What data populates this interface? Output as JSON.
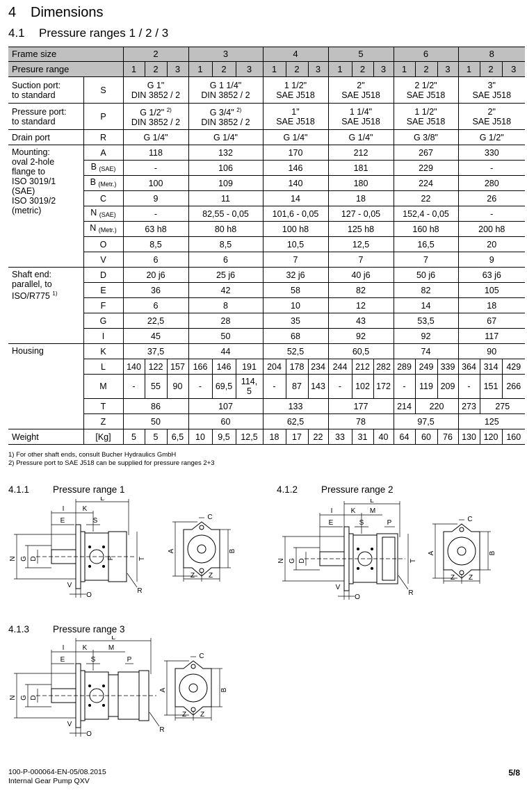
{
  "heading": {
    "number": "4",
    "title": "Dimensions"
  },
  "subheading": {
    "number": "4.1",
    "title": "Pressure ranges 1 / 2 / 3"
  },
  "table": {
    "frame_label": "Frame size",
    "frames": [
      "2",
      "3",
      "4",
      "5",
      "6",
      "8"
    ],
    "range_label": "Presure range",
    "ranges": [
      "1",
      "2",
      "3"
    ],
    "rows": [
      {
        "label": "Suction port:\nto standard",
        "symbol": "S",
        "cells": [
          {
            "v": "G 1\"\nDIN 3852 / 2",
            "span": 3
          },
          {
            "v": "G 1 1/4\"\nDIN 3852 / 2",
            "span": 3
          },
          {
            "v": "1 1/2\"\nSAE J518",
            "span": 3
          },
          {
            "v": "2\"\nSAE J518",
            "span": 3
          },
          {
            "v": "2 1/2\"\nSAE J518",
            "span": 3
          },
          {
            "v": "3\"\nSAE J518",
            "span": 3
          }
        ]
      },
      {
        "label": "Pressure port:\nto standard",
        "symbol": "P",
        "cells": [
          {
            "v": "G 1/2\"",
            "sup": "2)",
            "v2": "DIN 3852 / 2",
            "span": 3
          },
          {
            "v": "G 3/4\"",
            "sup": "2)",
            "v2": "DIN 3852 / 2",
            "span": 3
          },
          {
            "v": "1\"\nSAE J518",
            "span": 3
          },
          {
            "v": "1 1/4\"\nSAE J518",
            "span": 3
          },
          {
            "v": "1 1/2\"\nSAE J518",
            "span": 3
          },
          {
            "v": "2\"\nSAE J518",
            "span": 3
          }
        ]
      },
      {
        "label": "Drain port",
        "symbol": "R",
        "cells": [
          {
            "v": "G 1/4\"",
            "span": 3
          },
          {
            "v": "G 1/4\"",
            "span": 3
          },
          {
            "v": "G 1/4\"",
            "span": 3
          },
          {
            "v": "G 1/4\"",
            "span": 3
          },
          {
            "v": "G 3/8\"",
            "span": 3
          },
          {
            "v": "G 1/2\"",
            "span": 3
          }
        ]
      },
      {
        "label": "Mounting:\noval 2-hole\nflange to\nISO 3019/1\n(SAE)\nISO 3019/2\n(metric)",
        "label_rows": 8,
        "symbol": "A",
        "cells": [
          {
            "v": "118",
            "span": 3
          },
          {
            "v": "132",
            "span": 3
          },
          {
            "v": "170",
            "span": 3
          },
          {
            "v": "212",
            "span": 3
          },
          {
            "v": "267",
            "span": 3
          },
          {
            "v": "330",
            "span": 3
          }
        ]
      },
      {
        "symbol": "B",
        "sub": "(SAE)",
        "cells": [
          {
            "v": "-",
            "span": 3
          },
          {
            "v": "106",
            "span": 3
          },
          {
            "v": "146",
            "span": 3
          },
          {
            "v": "181",
            "span": 3
          },
          {
            "v": "229",
            "span": 3
          },
          {
            "v": "-",
            "span": 3
          }
        ]
      },
      {
        "symbol": "B",
        "sub": "(Metr.)",
        "cells": [
          {
            "v": "100",
            "span": 3
          },
          {
            "v": "109",
            "span": 3
          },
          {
            "v": "140",
            "span": 3
          },
          {
            "v": "180",
            "span": 3
          },
          {
            "v": "224",
            "span": 3
          },
          {
            "v": "280",
            "span": 3
          }
        ]
      },
      {
        "symbol": "C",
        "cells": [
          {
            "v": "9",
            "span": 3
          },
          {
            "v": "11",
            "span": 3
          },
          {
            "v": "14",
            "span": 3
          },
          {
            "v": "18",
            "span": 3
          },
          {
            "v": "22",
            "span": 3
          },
          {
            "v": "26",
            "span": 3
          }
        ]
      },
      {
        "symbol": "N",
        "sub": "(SAE)",
        "cells": [
          {
            "v": "-",
            "span": 3
          },
          {
            "v": "82,55 - 0,05",
            "span": 3
          },
          {
            "v": "101,6 - 0,05",
            "span": 3
          },
          {
            "v": "127 - 0,05",
            "span": 3
          },
          {
            "v": "152,4 - 0,05",
            "span": 3
          },
          {
            "v": "-",
            "span": 3
          }
        ]
      },
      {
        "symbol": "N",
        "sub": "(Metr.)",
        "cells": [
          {
            "v": "63 h8",
            "span": 3
          },
          {
            "v": "80 h8",
            "span": 3
          },
          {
            "v": "100 h8",
            "span": 3
          },
          {
            "v": "125 h8",
            "span": 3
          },
          {
            "v": "160 h8",
            "span": 3
          },
          {
            "v": "200 h8",
            "span": 3
          }
        ]
      },
      {
        "symbol": "O",
        "cells": [
          {
            "v": "8,5",
            "span": 3
          },
          {
            "v": "8,5",
            "span": 3
          },
          {
            "v": "10,5",
            "span": 3
          },
          {
            "v": "12,5",
            "span": 3
          },
          {
            "v": "16,5",
            "span": 3
          },
          {
            "v": "20",
            "span": 3
          }
        ]
      },
      {
        "symbol": "V",
        "cells": [
          {
            "v": "6",
            "span": 3
          },
          {
            "v": "6",
            "span": 3
          },
          {
            "v": "7",
            "span": 3
          },
          {
            "v": "7",
            "span": 3
          },
          {
            "v": "7",
            "span": 3
          },
          {
            "v": "9",
            "span": 3
          }
        ]
      },
      {
        "label": "Shaft end:\nparallel, to\nISO/R775",
        "label_sup": "1)",
        "label_rows": 5,
        "symbol": "D",
        "cells": [
          {
            "v": "20 j6",
            "span": 3
          },
          {
            "v": "25 j6",
            "span": 3
          },
          {
            "v": "32 j6",
            "span": 3
          },
          {
            "v": "40 j6",
            "span": 3
          },
          {
            "v": "50 j6",
            "span": 3
          },
          {
            "v": "63 j6",
            "span": 3
          }
        ]
      },
      {
        "symbol": "E",
        "cells": [
          {
            "v": "36",
            "span": 3
          },
          {
            "v": "42",
            "span": 3
          },
          {
            "v": "58",
            "span": 3
          },
          {
            "v": "82",
            "span": 3
          },
          {
            "v": "82",
            "span": 3
          },
          {
            "v": "105",
            "span": 3
          }
        ]
      },
      {
        "symbol": "F",
        "cells": [
          {
            "v": "6",
            "span": 3
          },
          {
            "v": "8",
            "span": 3
          },
          {
            "v": "10",
            "span": 3
          },
          {
            "v": "12",
            "span": 3
          },
          {
            "v": "14",
            "span": 3
          },
          {
            "v": "18",
            "span": 3
          }
        ]
      },
      {
        "symbol": "G",
        "cells": [
          {
            "v": "22,5",
            "span": 3
          },
          {
            "v": "28",
            "span": 3
          },
          {
            "v": "35",
            "span": 3
          },
          {
            "v": "43",
            "span": 3
          },
          {
            "v": "53,5",
            "span": 3
          },
          {
            "v": "67",
            "span": 3
          }
        ]
      },
      {
        "symbol": "I",
        "cells": [
          {
            "v": "45",
            "span": 3
          },
          {
            "v": "50",
            "span": 3
          },
          {
            "v": "68",
            "span": 3
          },
          {
            "v": "92",
            "span": 3
          },
          {
            "v": "92",
            "span": 3
          },
          {
            "v": "117",
            "span": 3
          }
        ]
      },
      {
        "label": "Housing",
        "label_rows": 5,
        "symbol": "K",
        "cells": [
          {
            "v": "37,5",
            "span": 3
          },
          {
            "v": "44",
            "span": 3
          },
          {
            "v": "52,5",
            "span": 3
          },
          {
            "v": "60,5",
            "span": 3
          },
          {
            "v": "74",
            "span": 3
          },
          {
            "v": "90",
            "span": 3
          }
        ]
      },
      {
        "symbol": "L",
        "cells": [
          {
            "v": "140"
          },
          {
            "v": "122"
          },
          {
            "v": "157"
          },
          {
            "v": "166"
          },
          {
            "v": "146"
          },
          {
            "v": "191"
          },
          {
            "v": "204"
          },
          {
            "v": "178"
          },
          {
            "v": "234"
          },
          {
            "v": "244"
          },
          {
            "v": "212"
          },
          {
            "v": "282"
          },
          {
            "v": "289"
          },
          {
            "v": "249"
          },
          {
            "v": "339"
          },
          {
            "v": "364"
          },
          {
            "v": "314"
          },
          {
            "v": "429"
          }
        ]
      },
      {
        "symbol": "M",
        "tall": true,
        "cells": [
          {
            "v": "-"
          },
          {
            "v": "55"
          },
          {
            "v": "90"
          },
          {
            "v": "-"
          },
          {
            "v": "69,5"
          },
          {
            "v": "114,\n5"
          },
          {
            "v": "-"
          },
          {
            "v": "87"
          },
          {
            "v": "143"
          },
          {
            "v": "-"
          },
          {
            "v": "102"
          },
          {
            "v": "172"
          },
          {
            "v": "-"
          },
          {
            "v": "119"
          },
          {
            "v": "209"
          },
          {
            "v": "-"
          },
          {
            "v": "151"
          },
          {
            "v": "266"
          }
        ]
      },
      {
        "symbol": "T",
        "cells": [
          {
            "v": "86",
            "span": 3
          },
          {
            "v": "107",
            "span": 3
          },
          {
            "v": "133",
            "span": 3
          },
          {
            "v": "177",
            "span": 3
          },
          {
            "v": "214",
            "span": 1
          },
          {
            "v": "220",
            "span": 2
          },
          {
            "v": "273",
            "span": 1
          },
          {
            "v": "275",
            "span": 2
          }
        ]
      },
      {
        "symbol": "Z",
        "cells": [
          {
            "v": "50",
            "span": 3
          },
          {
            "v": "60",
            "span": 3
          },
          {
            "v": "62,5",
            "span": 3
          },
          {
            "v": "78",
            "span": 3
          },
          {
            "v": "97,5",
            "span": 3
          },
          {
            "v": "125",
            "span": 3
          }
        ]
      },
      {
        "label": "Weight",
        "label_rows": 1,
        "symbol": "[Kg]",
        "cells": [
          {
            "v": "5"
          },
          {
            "v": "5"
          },
          {
            "v": "6,5"
          },
          {
            "v": "10"
          },
          {
            "v": "9,5"
          },
          {
            "v": "12,5"
          },
          {
            "v": "18"
          },
          {
            "v": "17"
          },
          {
            "v": "22"
          },
          {
            "v": "33"
          },
          {
            "v": "31"
          },
          {
            "v": "40"
          },
          {
            "v": "64"
          },
          {
            "v": "60"
          },
          {
            "v": "76"
          },
          {
            "v": "130"
          },
          {
            "v": "120"
          },
          {
            "v": "160"
          }
        ]
      }
    ]
  },
  "notes": [
    "1) For other shaft ends, consult Bucher Hydraulics GmbH",
    "2) Pressure port to SAE J518 can be supplied for pressure ranges  2+3"
  ],
  "drawings": [
    {
      "number": "4.1.1",
      "title": "Pressure range 1",
      "variant": 1,
      "labels": {
        "L": "L",
        "I": "I",
        "K": "K",
        "E": "E",
        "S": "S",
        "N": "N",
        "G": "G",
        "D": "D",
        "P": "P",
        "T": "T",
        "R": "R",
        "V": "V",
        "O": "O",
        "A": "A",
        "B": "B",
        "C": "C",
        "Z": "Z"
      }
    },
    {
      "number": "4.1.2",
      "title": "Pressure range 2",
      "variant": 2,
      "labels": {
        "L": "L",
        "I": "I",
        "K": "K",
        "M": "M",
        "E": "E",
        "S": "S",
        "P": "P",
        "N": "N",
        "G": "G",
        "D": "D",
        "T": "T",
        "R": "R",
        "V": "V",
        "O": "O",
        "A": "A",
        "B": "B",
        "C": "C",
        "Z": "Z"
      }
    },
    {
      "number": "4.1.3",
      "title": "Pressure range 3",
      "variant": 3,
      "labels": {
        "L": "L",
        "I": "I",
        "K": "K",
        "M": "M",
        "E": "E",
        "S": "S",
        "P": "P",
        "N": "N",
        "G": "G",
        "D": "D",
        "R": "R",
        "V": "V",
        "O": "O",
        "A": "A",
        "B": "B",
        "C": "C",
        "Z": "Z"
      }
    }
  ],
  "footer": {
    "doc_number": "100-P-000064-EN-05/08.2015",
    "product": "Internal Gear Pump QXV",
    "page": "5/8"
  }
}
